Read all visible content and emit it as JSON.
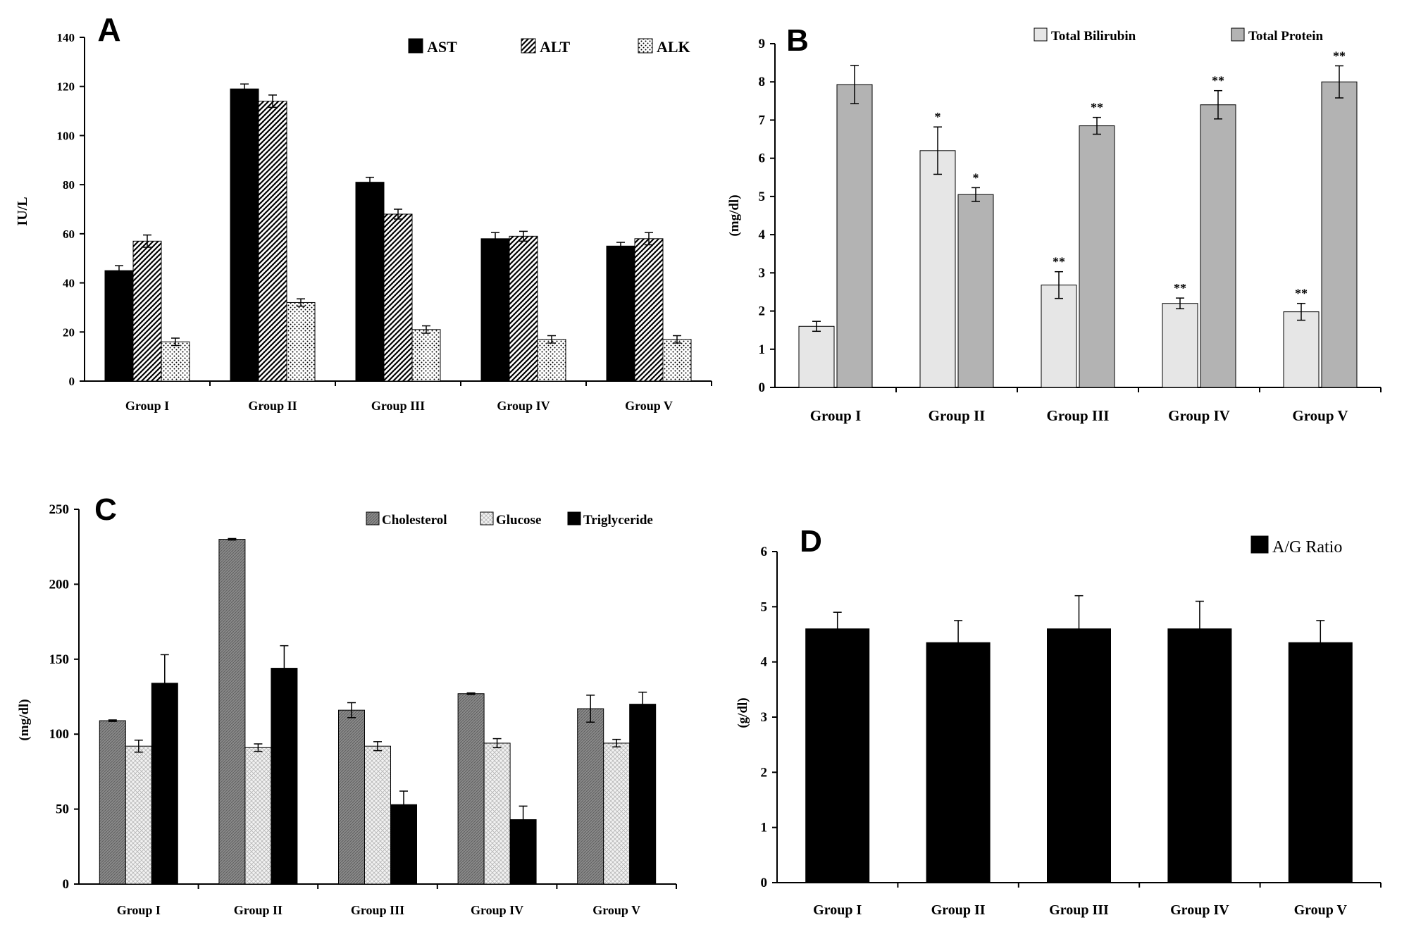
{
  "chart_data": [
    {
      "panel": "A",
      "type": "bar",
      "ylabel": "IU/L",
      "ylim": [
        0,
        140
      ],
      "yticks": [
        "0",
        "20",
        "40",
        "60",
        "80",
        "100",
        "120",
        "140"
      ],
      "categories": [
        "Group I",
        "Group II",
        "Group III",
        "Group IV",
        "Group V"
      ],
      "legend_position": "top-right",
      "series": [
        {
          "name": "AST",
          "values": [
            45,
            119,
            81,
            58,
            55
          ],
          "errors": [
            2,
            2,
            2,
            2.5,
            1.5
          ],
          "fill": "solid-black"
        },
        {
          "name": "ALT",
          "values": [
            57,
            114,
            68,
            59,
            58
          ],
          "errors": [
            2.5,
            2.5,
            2,
            2,
            2.5
          ],
          "fill": "diagonal-hatch"
        },
        {
          "name": "ALK",
          "values": [
            16,
            32,
            21,
            17,
            17
          ],
          "errors": [
            1.5,
            1.5,
            1.5,
            1.5,
            1.5
          ],
          "fill": "dots"
        }
      ]
    },
    {
      "panel": "B",
      "type": "bar",
      "ylabel": "(mg/dl)",
      "ylim": [
        0,
        9
      ],
      "yticks": [
        "0",
        "1",
        "2",
        "3",
        "4",
        "5",
        "6",
        "7",
        "8",
        "9"
      ],
      "categories": [
        "Group I",
        "Group II",
        "Group III",
        "Group IV",
        "Group V"
      ],
      "legend_position": "top-right",
      "series": [
        {
          "name": "Total Bilirubin",
          "values": [
            1.6,
            6.2,
            2.68,
            2.2,
            1.98
          ],
          "errors": [
            0.13,
            0.62,
            0.35,
            0.14,
            0.22
          ],
          "annotations": [
            "",
            "*",
            "**",
            "**",
            "**"
          ],
          "fill": "light-gray"
        },
        {
          "name": "Total Protein",
          "values": [
            7.93,
            5.05,
            6.85,
            7.4,
            8.0
          ],
          "errors": [
            0.5,
            0.18,
            0.22,
            0.37,
            0.42
          ],
          "annotations": [
            "",
            "*",
            "**",
            "**",
            "**"
          ],
          "fill": "mid-gray"
        }
      ]
    },
    {
      "panel": "C",
      "type": "bar",
      "ylabel": "(mg/dl)",
      "ylim": [
        0,
        250
      ],
      "yticks": [
        "0",
        "50",
        "100",
        "150",
        "200",
        "250"
      ],
      "categories": [
        "Group I",
        "Group II",
        "Group III",
        "Group IV",
        "Group V"
      ],
      "legend_position": "top-right",
      "series": [
        {
          "name": "Cholesterol",
          "values": [
            109,
            230,
            116,
            127,
            117
          ],
          "errors": [
            0.5,
            0.5,
            5,
            0.5,
            9
          ],
          "fill": "dark-gray-texture"
        },
        {
          "name": "Glucose",
          "values": [
            92,
            91,
            92,
            94,
            94
          ],
          "errors": [
            4,
            2.5,
            3,
            3,
            2.5
          ],
          "fill": "light-crosshatch"
        },
        {
          "name": "Triglyceride",
          "values": [
            134,
            144,
            53,
            43,
            120
          ],
          "errors": [
            19,
            15,
            9,
            9,
            8
          ],
          "fill": "solid-black"
        }
      ]
    },
    {
      "panel": "D",
      "type": "bar",
      "ylabel": "(g/dl)",
      "ylim": [
        0,
        6
      ],
      "yticks": [
        "0",
        "1",
        "2",
        "3",
        "4",
        "5",
        "6"
      ],
      "categories": [
        "Group I",
        "Group II",
        "Group III",
        "Group IV",
        "Group V"
      ],
      "legend_position": "top-right",
      "series": [
        {
          "name": "A/G Ratio",
          "values": [
            4.6,
            4.35,
            4.6,
            4.6,
            4.35
          ],
          "errors": [
            0.3,
            0.4,
            0.6,
            0.5,
            0.4
          ],
          "fill": "solid-black"
        }
      ]
    }
  ]
}
